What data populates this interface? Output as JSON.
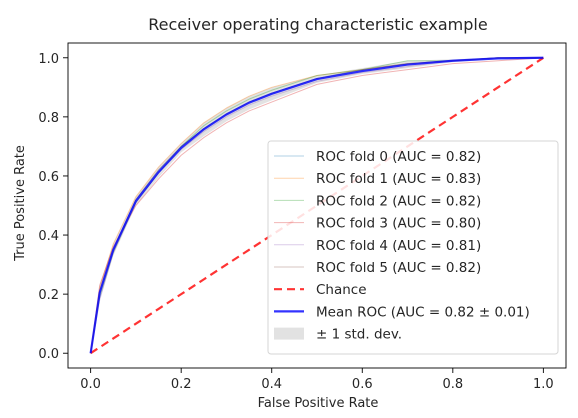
{
  "chart_data": {
    "type": "line",
    "title": "Receiver operating characteristic example",
    "xlabel": "False Positive Rate",
    "ylabel": "True Positive Rate",
    "xlim": [
      -0.05,
      1.05
    ],
    "ylim": [
      -0.05,
      1.05
    ],
    "xticks": [
      0.0,
      0.2,
      0.4,
      0.6,
      0.8,
      1.0
    ],
    "yticks": [
      0.0,
      0.2,
      0.4,
      0.6,
      0.8,
      1.0
    ],
    "xtick_labels": [
      "0.0",
      "0.2",
      "0.4",
      "0.6",
      "0.8",
      "1.0"
    ],
    "ytick_labels": [
      "0.0",
      "0.2",
      "0.4",
      "0.6",
      "0.8",
      "1.0"
    ],
    "grid": false,
    "legend_position": "lower-right",
    "x": [
      0.0,
      0.02,
      0.05,
      0.1,
      0.15,
      0.2,
      0.25,
      0.3,
      0.35,
      0.4,
      0.5,
      0.6,
      0.7,
      0.8,
      0.9,
      1.0
    ],
    "series": [
      {
        "name": "ROC fold 0 (AUC = 0.82)",
        "color": "#1f77b4",
        "style": "thin-faint",
        "y": [
          0.0,
          0.2,
          0.35,
          0.52,
          0.62,
          0.7,
          0.76,
          0.81,
          0.85,
          0.88,
          0.93,
          0.96,
          0.98,
          0.99,
          1.0,
          1.0
        ]
      },
      {
        "name": "ROC fold 1 (AUC = 0.83)",
        "color": "#ff7f0e",
        "style": "thin-faint",
        "y": [
          0.0,
          0.22,
          0.37,
          0.53,
          0.63,
          0.71,
          0.78,
          0.83,
          0.87,
          0.9,
          0.94,
          0.96,
          0.98,
          0.99,
          1.0,
          1.0
        ]
      },
      {
        "name": "ROC fold 2 (AUC = 0.82)",
        "color": "#2ca02c",
        "style": "thin-faint",
        "y": [
          0.0,
          0.19,
          0.34,
          0.51,
          0.61,
          0.7,
          0.77,
          0.82,
          0.86,
          0.89,
          0.94,
          0.96,
          0.99,
          0.99,
          1.0,
          1.0
        ]
      },
      {
        "name": "ROC fold 3 (AUC = 0.80)",
        "color": "#d62728",
        "style": "thin-faint",
        "y": [
          0.0,
          0.23,
          0.36,
          0.5,
          0.59,
          0.67,
          0.73,
          0.78,
          0.82,
          0.85,
          0.91,
          0.94,
          0.96,
          0.98,
          0.99,
          1.0
        ]
      },
      {
        "name": "ROC fold 4 (AUC = 0.81)",
        "color": "#9467bd",
        "style": "thin-faint",
        "y": [
          0.0,
          0.18,
          0.34,
          0.51,
          0.61,
          0.69,
          0.75,
          0.8,
          0.84,
          0.87,
          0.92,
          0.95,
          0.97,
          0.99,
          1.0,
          1.0
        ]
      },
      {
        "name": "ROC fold 5 (AUC = 0.82)",
        "color": "#8c564b",
        "style": "thin-faint",
        "y": [
          0.0,
          0.21,
          0.35,
          0.52,
          0.62,
          0.7,
          0.76,
          0.81,
          0.85,
          0.88,
          0.93,
          0.96,
          0.98,
          0.99,
          1.0,
          1.0
        ]
      },
      {
        "name": "Chance",
        "color": "#ff0000",
        "style": "dashed",
        "y": [
          0.0,
          0.02,
          0.05,
          0.1,
          0.15,
          0.2,
          0.25,
          0.3,
          0.35,
          0.4,
          0.5,
          0.6,
          0.7,
          0.8,
          0.9,
          1.0
        ]
      },
      {
        "name": "Mean ROC (AUC = 0.82 ± 0.01)",
        "color": "#0000ff",
        "style": "thick",
        "y": [
          0.0,
          0.205,
          0.35,
          0.515,
          0.613,
          0.695,
          0.758,
          0.808,
          0.848,
          0.878,
          0.928,
          0.955,
          0.977,
          0.99,
          0.998,
          1.0
        ]
      }
    ],
    "band": {
      "name": "± 1 std. dev.",
      "color": "#bfbfbf",
      "upper": [
        0.0,
        0.23,
        0.37,
        0.53,
        0.63,
        0.71,
        0.78,
        0.83,
        0.87,
        0.9,
        0.94,
        0.965,
        0.99,
        0.995,
        1.0,
        1.0
      ],
      "lower": [
        0.0,
        0.18,
        0.33,
        0.5,
        0.595,
        0.68,
        0.735,
        0.785,
        0.825,
        0.856,
        0.915,
        0.945,
        0.965,
        0.985,
        0.995,
        1.0
      ]
    }
  }
}
